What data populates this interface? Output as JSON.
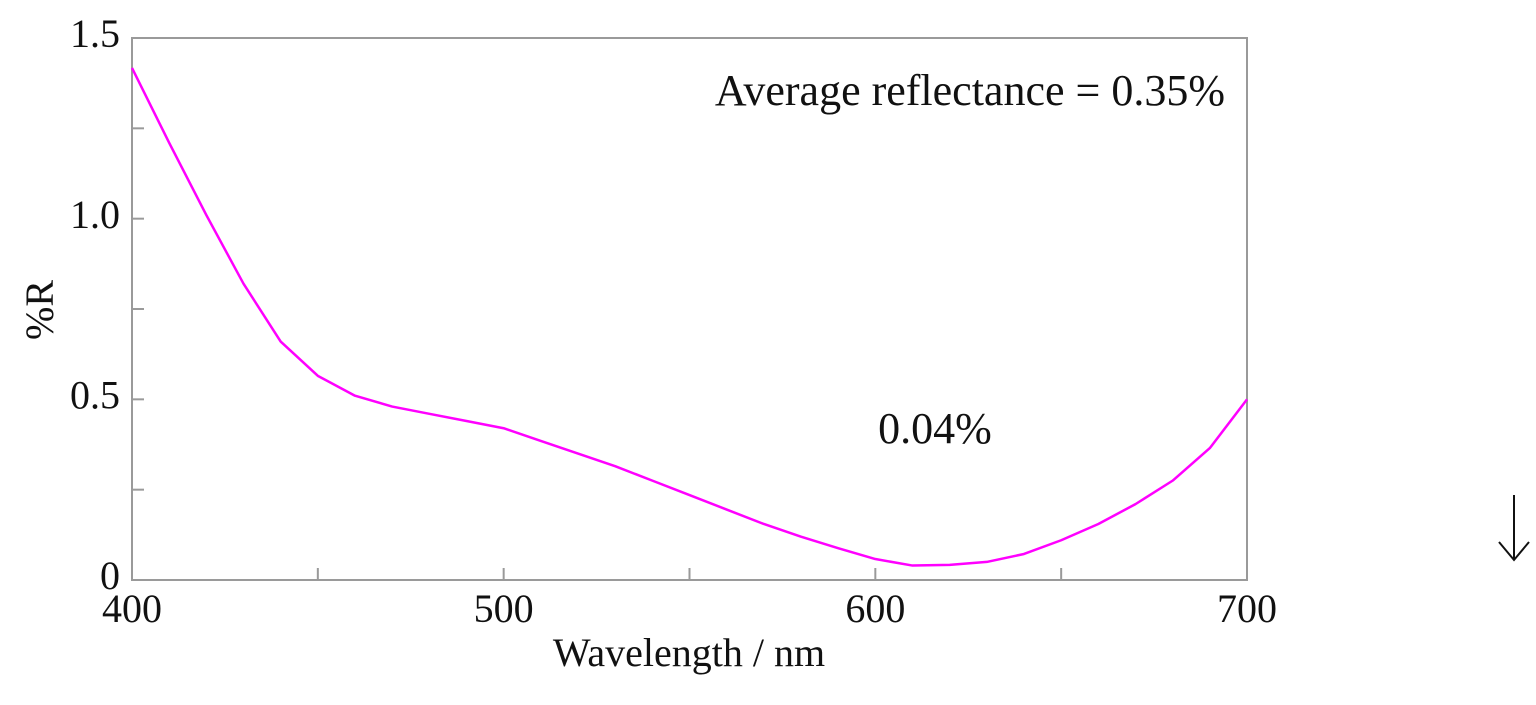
{
  "chart_data": {
    "type": "line",
    "x_label": "Wavelength / nm",
    "y_label": "%R",
    "annotations": [
      "Average reflectance = 0.35%",
      "0.04%"
    ],
    "x": [
      400,
      410,
      420,
      430,
      440,
      450,
      460,
      470,
      480,
      490,
      500,
      510,
      520,
      530,
      540,
      550,
      560,
      570,
      580,
      590,
      600,
      610,
      620,
      630,
      640,
      650,
      660,
      670,
      680,
      690,
      700
    ],
    "values": [
      1.417,
      1.21,
      1.01,
      0.82,
      0.66,
      0.565,
      0.51,
      0.48,
      0.46,
      0.44,
      0.42,
      0.385,
      0.35,
      0.315,
      0.275,
      0.235,
      0.195,
      0.155,
      0.12,
      0.088,
      0.058,
      0.04,
      0.042,
      0.05,
      0.072,
      0.11,
      0.155,
      0.21,
      0.275,
      0.365,
      0.5
    ],
    "color": "#ff00ff",
    "xlim": [
      400,
      700
    ],
    "xticks": [
      400,
      500,
      600,
      700
    ],
    "xminorticks": [
      450,
      550,
      650
    ],
    "ylim": [
      0,
      1.5
    ],
    "yticks": [
      0,
      0.5,
      {
        "value": 1,
        "label": "1.0"
      },
      1.5
    ],
    "yminorticks": [
      0.25,
      0.75,
      1.25
    ]
  }
}
